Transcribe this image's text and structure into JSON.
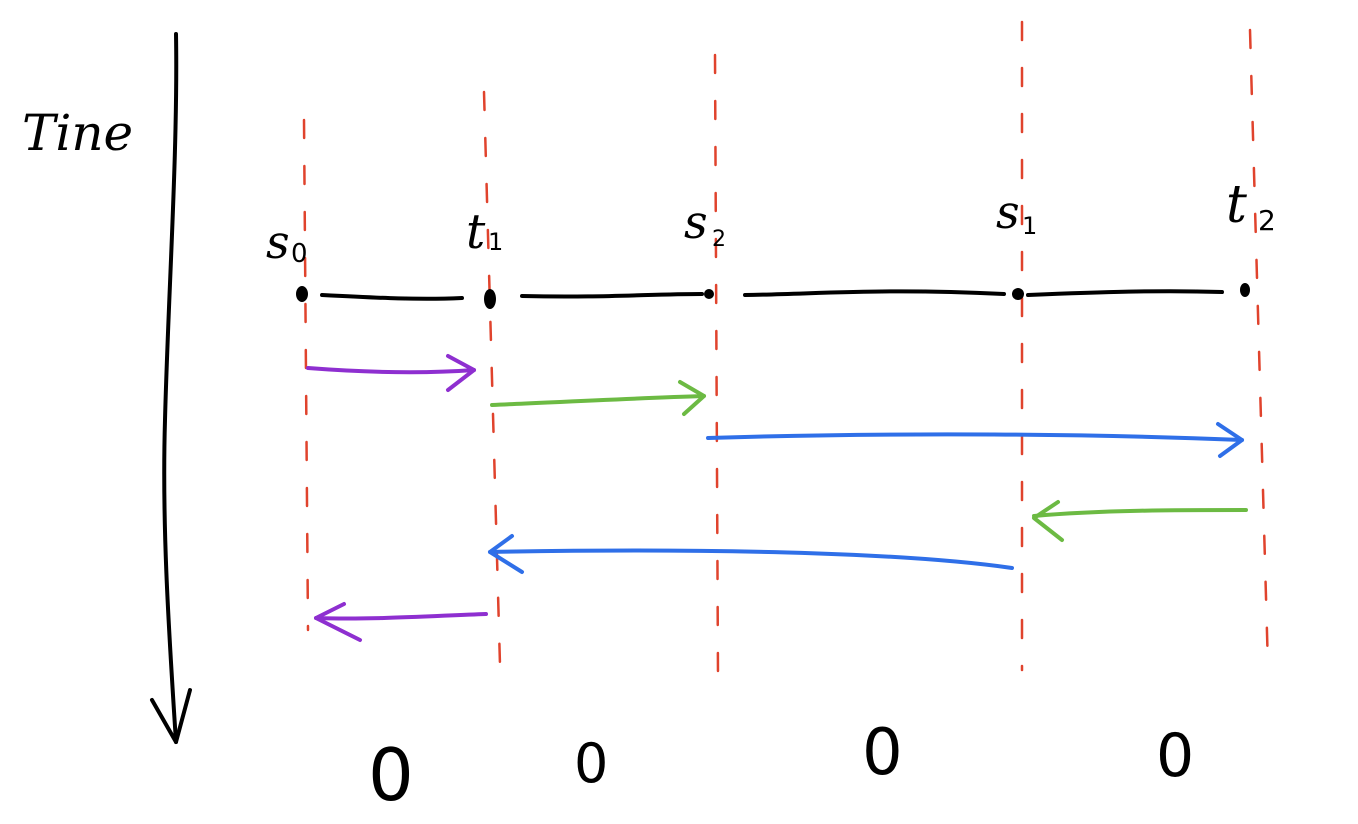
{
  "axis": {
    "label": "Tine"
  },
  "nodes": [
    {
      "id": "s0",
      "base": "s",
      "sub": "0"
    },
    {
      "id": "t1",
      "base": "t",
      "sub": "1"
    },
    {
      "id": "s2",
      "base": "s",
      "sub": "2"
    },
    {
      "id": "s1",
      "base": "s",
      "sub": "1"
    },
    {
      "id": "t2",
      "base": "t",
      "sub": "2"
    }
  ],
  "counts": [
    "0",
    "0",
    "0",
    "0"
  ],
  "arrows": [
    {
      "from": "s0",
      "to": "t1",
      "color": "#8e2fd0"
    },
    {
      "from": "t1",
      "to": "s2",
      "color": "#6cba43"
    },
    {
      "from": "s2",
      "to": "t2",
      "color": "#2f6fe8"
    },
    {
      "from": "t2",
      "to": "s1",
      "color": "#6cba43"
    },
    {
      "from": "s1",
      "to": "t1",
      "color": "#2f6fe8"
    },
    {
      "from": "t1",
      "to": "s0",
      "color": "#8e2fd0"
    }
  ],
  "colors": {
    "ink": "#000000",
    "dashed_guides": "#e0432d"
  }
}
